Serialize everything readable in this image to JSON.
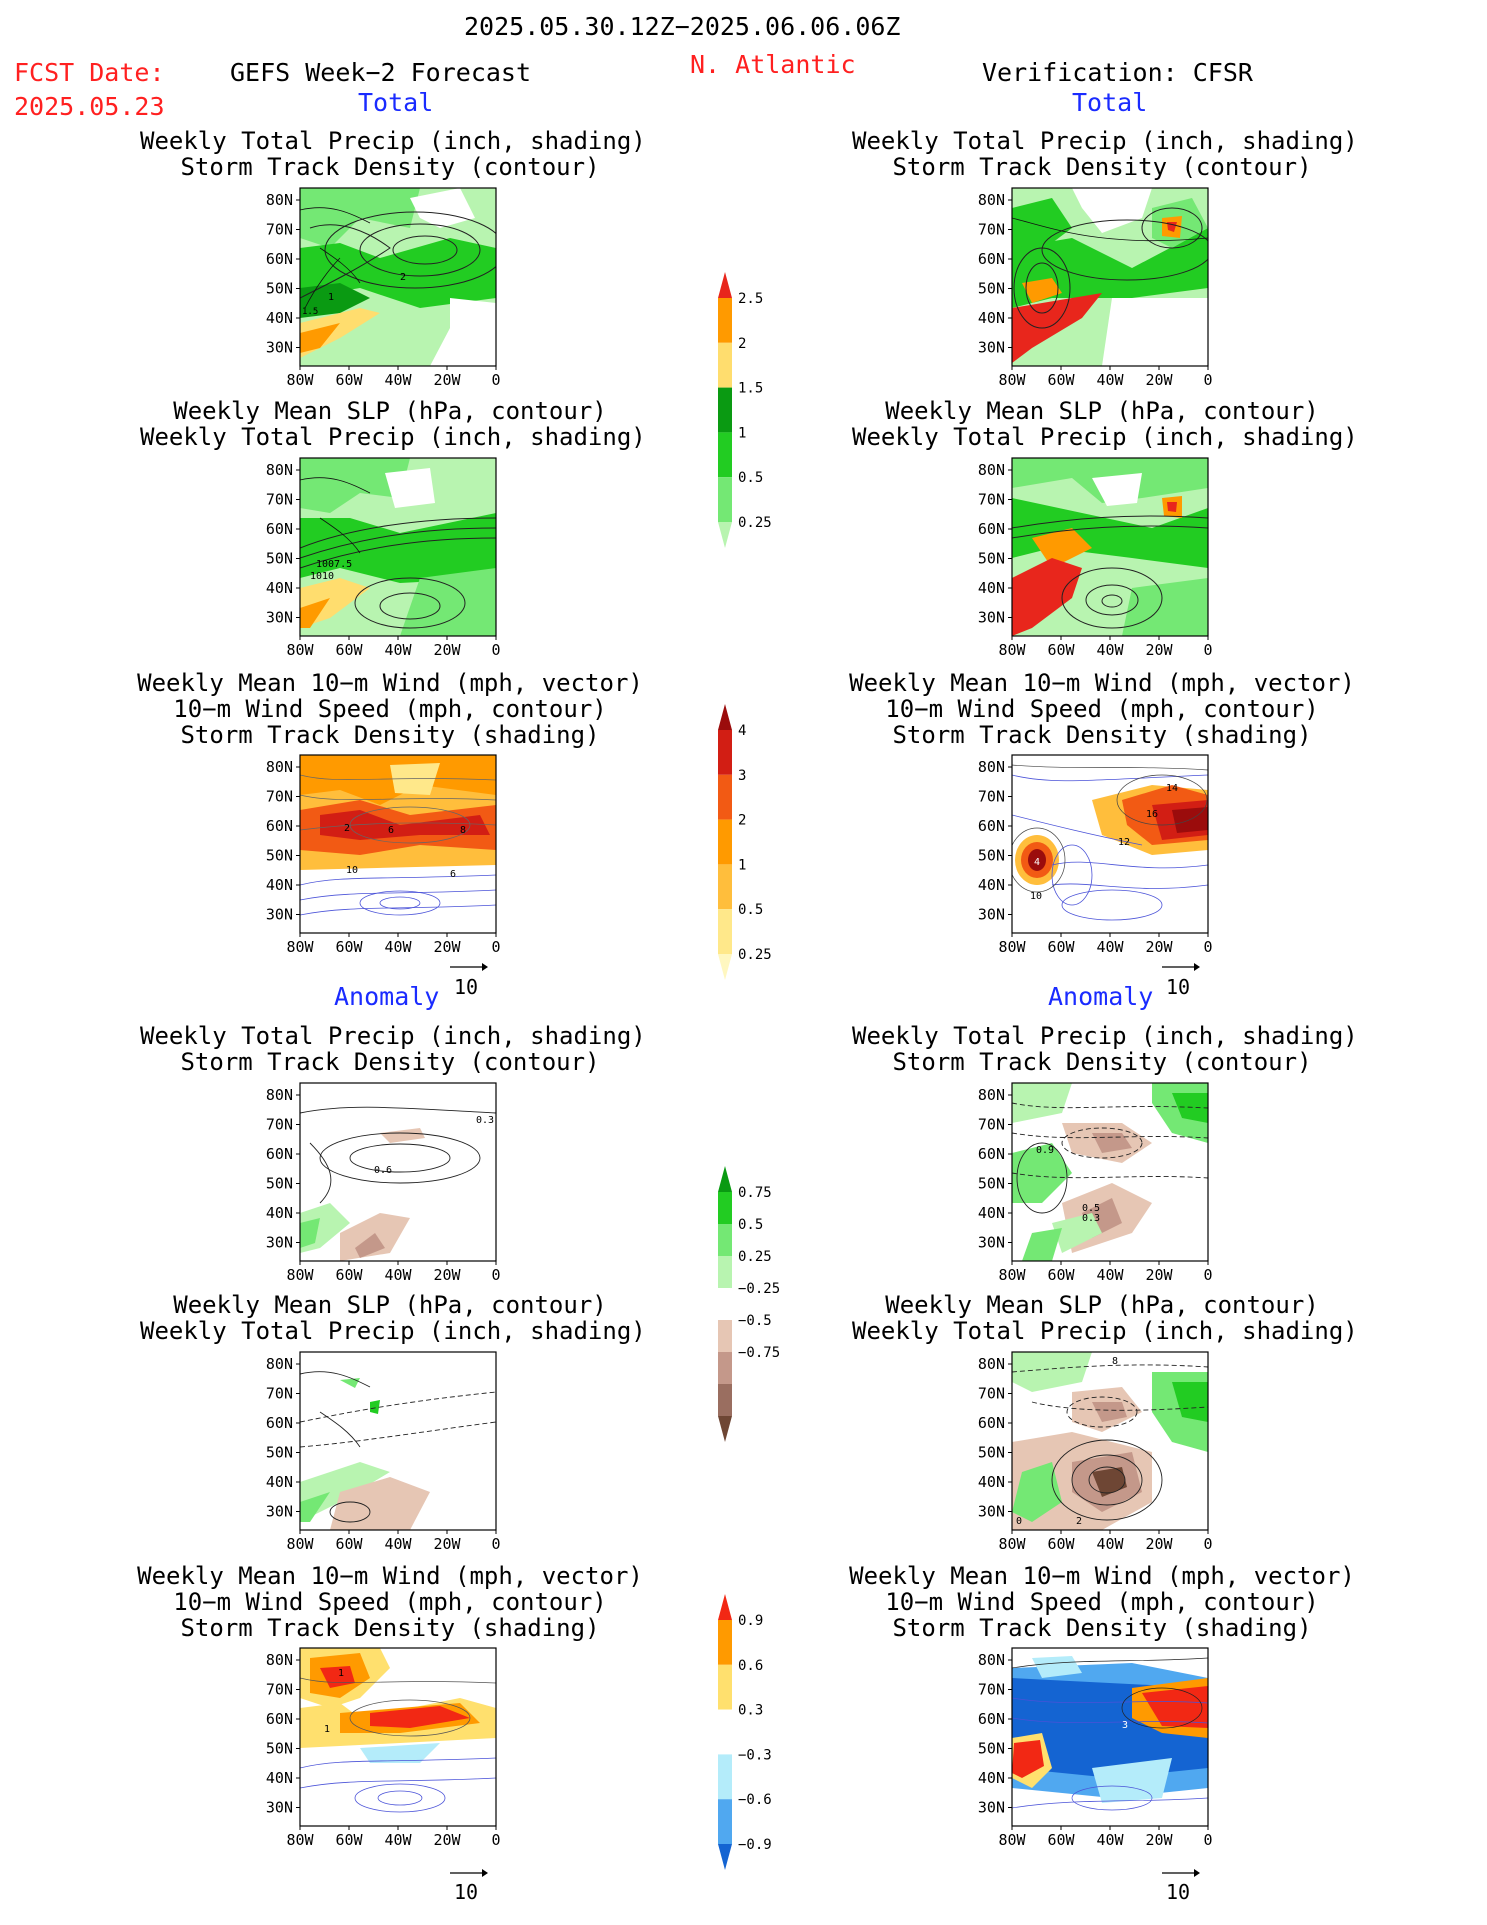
{
  "header": {
    "date_range": "2025.05.30.12Z−2025.06.06.06Z",
    "fcst_label": "FCST Date:",
    "fcst_date": "2025.05.23",
    "left_title": "GEFS Week−2 Forecast",
    "region": "N. Atlantic",
    "right_title": "Verification: CFSR"
  },
  "sections": {
    "total": "Total",
    "anomaly": "Anomaly"
  },
  "titles": {
    "p1": [
      "Weekly Total Precip (inch, shading)",
      "Storm Track Density (contour)"
    ],
    "p2": [
      "Weekly Mean SLP (hPa, contour)",
      "Weekly Total Precip (inch, shading)"
    ],
    "p3": [
      "Weekly Mean 10−m Wind (mph, vector)",
      "10−m Wind Speed (mph, contour)",
      "Storm Track Density (shading)"
    ]
  },
  "axes": {
    "lat_ticks": [
      "80N",
      "70N",
      "60N",
      "50N",
      "40N",
      "30N"
    ],
    "lon_ticks": [
      "80W",
      "60W",
      "40W",
      "20W",
      "0"
    ]
  },
  "vector_ref": "10",
  "colorbars": {
    "precip_total": {
      "labels": [
        "2.5",
        "2",
        "1.5",
        "1",
        "0.5",
        "0.25"
      ],
      "colors": [
        "#e8261c",
        "#ff9a00",
        "#ffdd6e",
        "#0a9a12",
        "#22cc22",
        "#74e874",
        "#b8f4b0"
      ]
    },
    "storm_total": {
      "labels": [
        "4",
        "3",
        "2",
        "1",
        "0.5",
        "0.25"
      ],
      "colors": [
        "#9b0c0c",
        "#d21e14",
        "#f25a14",
        "#ff9a00",
        "#ffbe3c",
        "#ffe88a",
        "#fff7c0"
      ]
    },
    "precip_anom": {
      "labels": [
        "0.75",
        "0.5",
        "0.25",
        "−0.25",
        "−0.5",
        "−0.75"
      ],
      "colors": [
        "#0a9a12",
        "#22cc22",
        "#74e874",
        "#b8f4b0",
        "#ffffff",
        "#e6c6b4",
        "#c4988a",
        "#9a6e60",
        "#6e4634"
      ]
    },
    "storm_anom": {
      "labels": [
        "0.9",
        "0.6",
        "0.3",
        "−0.3",
        "−0.6",
        "−0.9"
      ],
      "colors": [
        "#f22814",
        "#ff9a00",
        "#ffe06e",
        "#ffffff",
        "#b4ecfa",
        "#50a8f0",
        "#1464d2"
      ]
    }
  },
  "contour_labels": {
    "L1": [
      "2",
      "1",
      "1.5"
    ],
    "L2": [
      "1007.5",
      "1010"
    ],
    "L3": [
      "2",
      "6",
      "8",
      "10",
      "6"
    ],
    "R3": [
      "14",
      "16",
      "12",
      "4",
      "10"
    ],
    "L4": [
      "0.3",
      "0.6"
    ],
    "R4": [
      "0.9",
      "0.5",
      "0.3"
    ],
    "R5": [
      "8",
      "0",
      "2"
    ],
    "L6": [
      "1",
      "1"
    ],
    "R6": [
      "3"
    ]
  }
}
